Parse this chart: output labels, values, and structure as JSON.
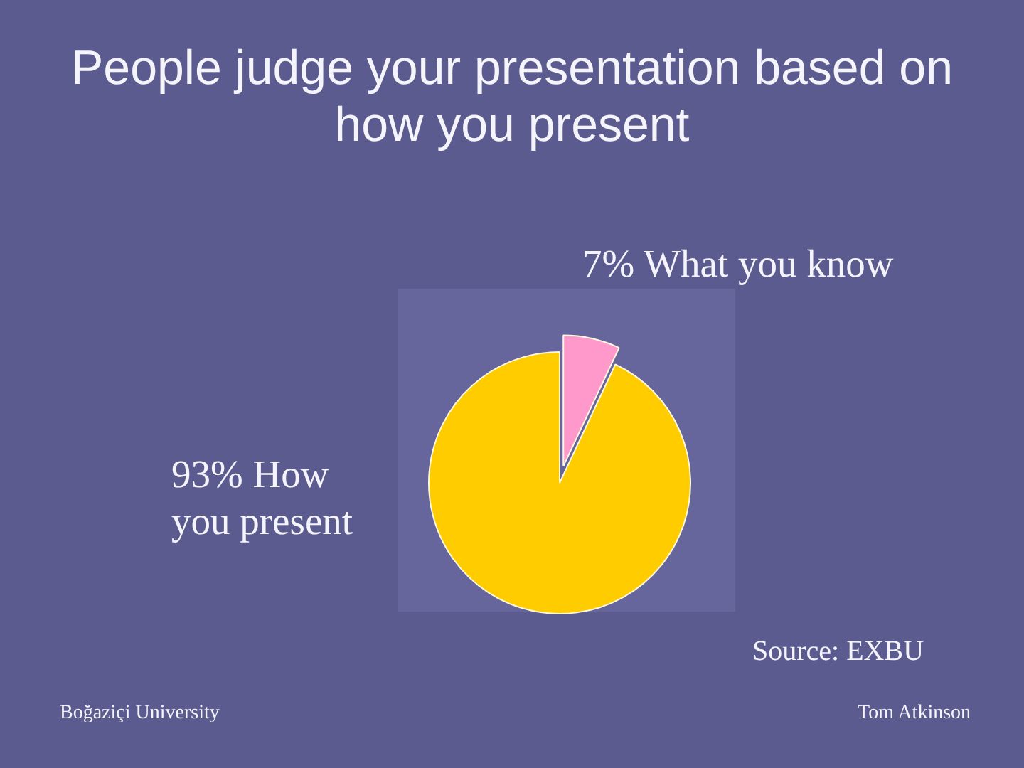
{
  "chart_data": {
    "type": "pie",
    "title": "People judge your presentation based on how you present",
    "categories": [
      "What you know",
      "How you present"
    ],
    "values": [
      7,
      93
    ],
    "colors": [
      "#ff99cc",
      "#ffcc00"
    ],
    "value_labels": [
      "7%",
      "93%"
    ],
    "annotations": [
      "Source: EXBU",
      "Boğaziçi University",
      "Tom Atkinson"
    ],
    "legend": false
  }
}
